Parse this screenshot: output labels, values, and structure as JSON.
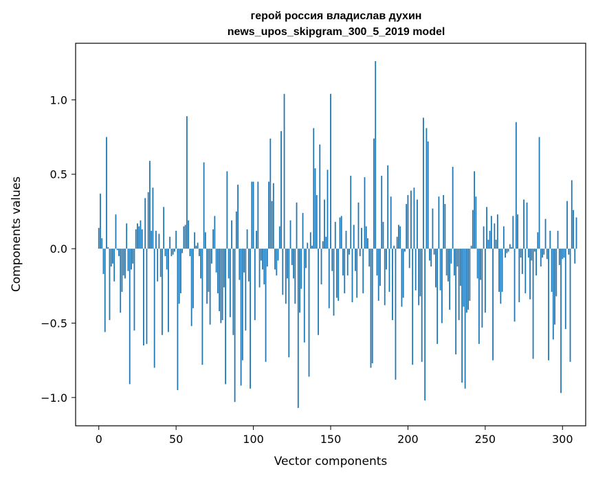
{
  "chart_data": {
    "type": "bar",
    "title": [
      "герой россия владислав духин",
      "news_upos_skipgram_300_5_2019 model"
    ],
    "xlabel": "Vector components",
    "ylabel": "Components values",
    "xlim": [
      -15,
      315
    ],
    "ylim": [
      -1.19,
      1.38
    ],
    "xticks": [
      0,
      50,
      100,
      150,
      200,
      250,
      300
    ],
    "xtick_labels": [
      "0",
      "50",
      "100",
      "150",
      "200",
      "250",
      "300"
    ],
    "yticks": [
      -1.0,
      -0.5,
      0.0,
      0.5,
      1.0
    ],
    "ytick_labels": [
      "−1.0",
      "−0.5",
      "0.0",
      "0.5",
      "1.0"
    ],
    "grid": false,
    "bar_color": "#1f77b4",
    "values": [
      0.14,
      0.37,
      0.07,
      -0.17,
      -0.56,
      0.75,
      0.01,
      -0.48,
      -0.12,
      -0.1,
      -0.22,
      0.23,
      -0.01,
      -0.05,
      -0.43,
      -0.29,
      -0.18,
      -0.2,
      0.17,
      -0.15,
      -0.91,
      -0.14,
      -0.1,
      -0.55,
      0.13,
      0.17,
      0.15,
      0.19,
      0.13,
      -0.65,
      0.34,
      -0.64,
      0.38,
      0.59,
      0.12,
      0.41,
      -0.8,
      0.12,
      -0.22,
      0.1,
      -0.19,
      -0.58,
      0.28,
      -0.05,
      -0.14,
      -0.56,
      0.08,
      -0.05,
      -0.04,
      -0.02,
      0.12,
      -0.95,
      -0.37,
      -0.3,
      -0.03,
      0.15,
      0.16,
      0.89,
      0.19,
      -0.05,
      -0.52,
      -0.4,
      0.11,
      0.02,
      0.04,
      -0.05,
      -0.2,
      -0.78,
      0.58,
      0.11,
      -0.37,
      -0.29,
      -0.51,
      -0.1,
      0.13,
      0.22,
      -0.16,
      -0.3,
      -0.42,
      -0.5,
      -0.48,
      -0.26,
      -0.91,
      0.52,
      -0.2,
      -0.46,
      0.19,
      -0.58,
      -1.03,
      0.25,
      0.43,
      -0.21,
      -0.92,
      -0.75,
      -0.16,
      -0.55,
      0.13,
      -0.22,
      -0.94,
      0.45,
      0.45,
      -0.48,
      0.12,
      0.45,
      -0.26,
      -0.08,
      -0.14,
      -0.24,
      -0.76,
      -0.12,
      0.45,
      0.74,
      0.32,
      0.44,
      -0.14,
      -0.18,
      -0.08,
      0.15,
      0.79,
      -0.31,
      1.04,
      -0.37,
      -0.2,
      -0.73,
      0.19,
      -0.11,
      -0.2,
      -0.37,
      0.31,
      -1.07,
      -0.43,
      -0.27,
      0.24,
      -0.63,
      -0.13,
      0.04,
      -0.86,
      0.11,
      0.02,
      0.81,
      0.54,
      0.36,
      -0.58,
      0.7,
      -0.24,
      0.05,
      0.33,
      0.08,
      0.53,
      -0.4,
      1.04,
      -0.15,
      -0.45,
      0.18,
      -0.33,
      -0.35,
      0.21,
      0.22,
      -0.18,
      -0.3,
      0.12,
      -0.18,
      -0.04,
      0.49,
      -0.36,
      0.16,
      -0.15,
      -0.33,
      0.31,
      -0.05,
      0.14,
      -0.3,
      0.48,
      0.15,
      0.07,
      -0.12,
      -0.8,
      -0.77,
      0.74,
      1.26,
      -0.18,
      -0.35,
      -0.25,
      0.49,
      0.18,
      -0.38,
      -0.14,
      0.56,
      -0.29,
      0.35,
      -0.48,
      0.02,
      -0.88,
      0.08,
      0.16,
      0.15,
      -0.39,
      -0.33,
      -0.02,
      0.3,
      0.36,
      -0.13,
      0.39,
      -0.78,
      0.41,
      -0.28,
      0.33,
      -0.38,
      -0.32,
      -0.76,
      0.88,
      -1.02,
      0.81,
      0.72,
      -0.08,
      -0.12,
      0.27,
      -0.04,
      -0.26,
      -0.64,
      0.35,
      -0.28,
      -0.5,
      0.36,
      0.3,
      -0.18,
      -0.22,
      -0.41,
      -0.1,
      0.55,
      -0.18,
      -0.71,
      -0.12,
      -0.48,
      -0.25,
      -0.9,
      -0.39,
      -0.94,
      -0.43,
      -0.41,
      -0.35,
      0.02,
      0.26,
      0.52,
      0.35,
      -0.2,
      -0.64,
      -0.21,
      -0.53,
      0.15,
      -0.43,
      0.28,
      0.06,
      0.12,
      0.22,
      -0.75,
      0.17,
      0.06,
      0.23,
      -0.29,
      -0.37,
      -0.29,
      0.15,
      -0.06,
      -0.03,
      -0.02,
      0.03,
      0.01,
      0.22,
      -0.49,
      0.85,
      0.23,
      -0.36,
      -0.06,
      -0.17,
      0.33,
      -0.3,
      0.31,
      -0.06,
      -0.34,
      -0.08,
      -0.74,
      -0.02,
      -0.18,
      0.11,
      0.75,
      -0.12,
      -0.06,
      -0.04,
      0.2,
      -0.07,
      -0.75,
      0.12,
      -0.29,
      -0.61,
      -0.51,
      -0.32,
      0.12,
      -0.11,
      -0.97,
      -0.07,
      -0.06,
      -0.54,
      0.32,
      -0.04,
      -0.76,
      0.46,
      0.26,
      -0.1,
      0.21
    ]
  }
}
